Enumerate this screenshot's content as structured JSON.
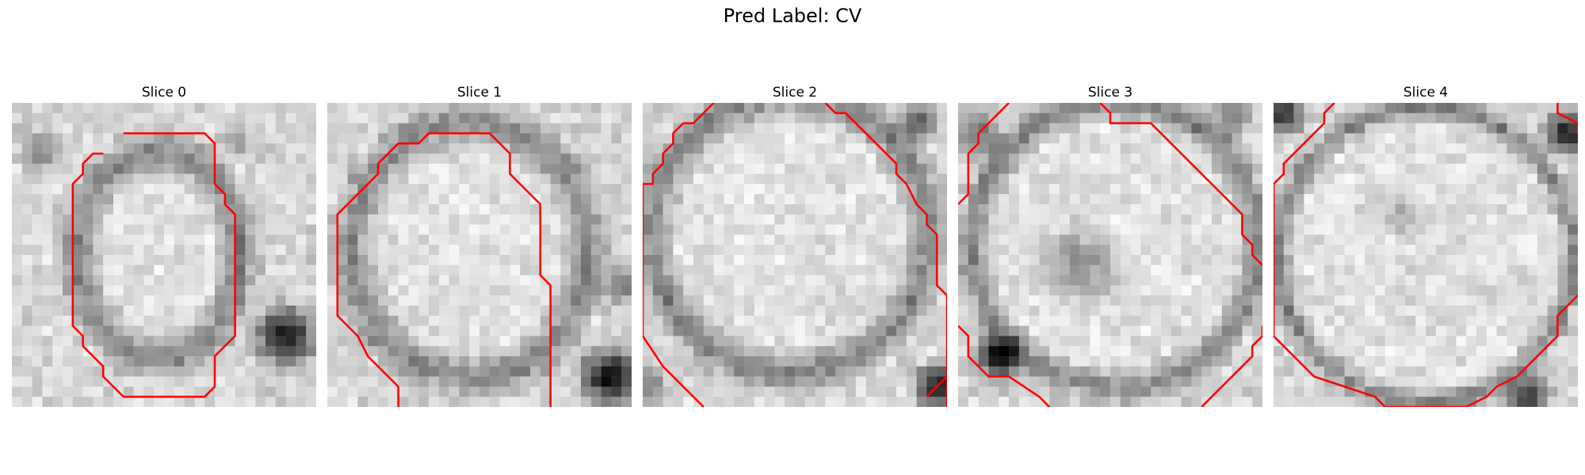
{
  "suptitle": "Pred Label: CV",
  "contour_color": "#ff0000",
  "colormap": "grayscale",
  "grid_size": 30,
  "slices": [
    {
      "title": "Slice 0",
      "seed": 11,
      "blob": {
        "cx": 14.5,
        "cy": 15.0,
        "rx": 8.0,
        "ry": 10.0,
        "ring": 2.2
      },
      "contours": [
        [
          [
            11,
            3
          ],
          [
            19,
            3
          ],
          [
            20,
            4
          ],
          [
            20,
            8
          ],
          [
            21,
            9
          ],
          [
            21,
            10
          ],
          [
            22,
            11
          ],
          [
            22,
            23
          ],
          [
            20,
            25
          ],
          [
            20,
            28
          ],
          [
            19,
            29
          ],
          [
            11,
            29
          ],
          [
            9,
            27
          ],
          [
            9,
            26
          ],
          [
            7,
            24
          ],
          [
            7,
            23
          ],
          [
            6,
            22
          ],
          [
            6,
            20
          ],
          [
            6,
            8
          ],
          [
            7,
            7
          ],
          [
            7,
            6
          ],
          [
            8,
            5
          ],
          [
            9,
            5
          ]
        ],
        [
          [
            11,
            3
          ],
          [
            11,
            3
          ]
        ]
      ],
      "darks": [
        [
          27,
          23,
          4,
          0.85
        ],
        [
          3,
          5,
          3,
          0.3
        ],
        [
          22,
          4,
          2,
          0.3
        ]
      ]
    },
    {
      "title": "Slice 1",
      "seed": 23,
      "blob": {
        "cx": 14.0,
        "cy": 14.5,
        "rx": 11.5,
        "ry": 12.5,
        "ring": 2.4
      },
      "contours": [
        [
          [
            7,
            30
          ],
          [
            7,
            28
          ],
          [
            5,
            26
          ],
          [
            4,
            25
          ],
          [
            3,
            23
          ],
          [
            2,
            22
          ],
          [
            1,
            21
          ],
          [
            1,
            11
          ],
          [
            3,
            9
          ],
          [
            5,
            7
          ],
          [
            5,
            6
          ],
          [
            6,
            5
          ],
          [
            7,
            4
          ],
          [
            9,
            4
          ],
          [
            10,
            3
          ],
          [
            16,
            3
          ],
          [
            18,
            5
          ],
          [
            18,
            7
          ],
          [
            21,
            10
          ],
          [
            21,
            17
          ],
          [
            22,
            18
          ],
          [
            22,
            30
          ]
        ]
      ],
      "darks": [
        [
          28,
          27,
          4,
          0.9
        ],
        [
          29,
          18,
          3,
          0.4
        ]
      ]
    },
    {
      "title": "Slice 2",
      "seed": 37,
      "blob": {
        "cx": 14.5,
        "cy": 13.0,
        "rx": 13.5,
        "ry": 13.5,
        "ring": 2.4
      },
      "contours": [
        [
          [
            7,
            0
          ],
          [
            5,
            2
          ],
          [
            4,
            2
          ],
          [
            3,
            3
          ],
          [
            3,
            4
          ],
          [
            2,
            5
          ],
          [
            2,
            6
          ],
          [
            1,
            7
          ],
          [
            1,
            8
          ],
          [
            0,
            8
          ],
          [
            0,
            23
          ],
          [
            2,
            26
          ],
          [
            4,
            28
          ],
          [
            6,
            30
          ]
        ],
        [
          [
            18,
            0
          ],
          [
            19,
            1
          ],
          [
            20,
            1
          ],
          [
            23,
            4
          ],
          [
            25,
            6
          ],
          [
            25,
            7
          ],
          [
            26,
            8
          ],
          [
            27,
            10
          ],
          [
            28,
            11
          ],
          [
            28,
            12
          ],
          [
            29,
            13
          ],
          [
            29,
            18
          ],
          [
            30,
            19
          ],
          [
            30,
            30
          ]
        ],
        [
          [
            30,
            27
          ],
          [
            28,
            29
          ]
        ]
      ],
      "darks": [
        [
          29,
          28,
          3,
          0.8
        ],
        [
          27,
          2,
          3,
          0.5
        ],
        [
          0,
          28,
          3,
          0.4
        ]
      ]
    },
    {
      "title": "Slice 3",
      "seed": 53,
      "blob": {
        "cx": 15.5,
        "cy": 14.0,
        "rx": 14.0,
        "ry": 14.0,
        "ring": 2.0
      },
      "contours": [
        [
          [
            0,
            10
          ],
          [
            1,
            9
          ],
          [
            1,
            5
          ],
          [
            2,
            4
          ],
          [
            2,
            3
          ],
          [
            3,
            2
          ],
          [
            4,
            1
          ],
          [
            5,
            0
          ]
        ],
        [
          [
            14,
            0
          ],
          [
            15,
            1
          ],
          [
            15,
            2
          ],
          [
            19,
            2
          ],
          [
            20,
            3
          ],
          [
            21,
            4
          ],
          [
            22,
            5
          ],
          [
            23,
            6
          ],
          [
            24,
            7
          ],
          [
            25,
            8
          ],
          [
            26,
            9
          ],
          [
            27,
            10
          ],
          [
            28,
            11
          ],
          [
            28,
            13
          ],
          [
            29,
            14
          ],
          [
            29,
            15
          ],
          [
            30,
            16
          ]
        ],
        [
          [
            0,
            22
          ],
          [
            1,
            23
          ],
          [
            1,
            25
          ],
          [
            2,
            26
          ],
          [
            3,
            27
          ],
          [
            5,
            27
          ],
          [
            8,
            29
          ],
          [
            9,
            30
          ]
        ],
        [
          [
            24,
            30
          ],
          [
            26,
            28
          ],
          [
            27,
            27
          ],
          [
            28,
            26
          ],
          [
            29,
            25
          ],
          [
            29,
            24
          ],
          [
            30,
            23
          ],
          [
            30,
            22
          ]
        ]
      ],
      "darks": [
        [
          4,
          25,
          3,
          0.95
        ],
        [
          12,
          16,
          5,
          0.35
        ],
        [
          2,
          3,
          3,
          0.45
        ],
        [
          27,
          1,
          3,
          0.4
        ]
      ]
    },
    {
      "title": "Slice 4",
      "seed": 71,
      "blob": {
        "cx": 15.0,
        "cy": 15.0,
        "rx": 14.5,
        "ry": 14.5,
        "ring": 1.5
      },
      "contours": [
        [
          [
            6,
            0
          ],
          [
            5,
            1
          ],
          [
            5,
            2
          ],
          [
            4,
            3
          ],
          [
            3,
            4
          ],
          [
            2,
            5
          ],
          [
            1,
            6
          ],
          [
            1,
            7
          ],
          [
            0,
            8
          ],
          [
            0,
            23
          ],
          [
            2,
            25
          ],
          [
            4,
            27
          ],
          [
            7,
            28
          ],
          [
            10,
            29
          ],
          [
            11,
            30
          ],
          [
            19,
            30
          ],
          [
            21,
            29
          ],
          [
            22,
            28
          ],
          [
            24,
            27
          ],
          [
            25,
            26
          ],
          [
            26,
            25
          ],
          [
            27,
            24
          ],
          [
            28,
            23
          ],
          [
            28,
            21
          ],
          [
            30,
            19
          ]
        ],
        [
          [
            28,
            0
          ],
          [
            28,
            1
          ],
          [
            30,
            2
          ],
          [
            30,
            3
          ]
        ]
      ],
      "darks": [
        [
          1,
          1,
          3,
          0.7
        ],
        [
          29,
          3,
          3,
          0.8
        ],
        [
          25,
          29,
          3,
          0.7
        ],
        [
          13,
          11,
          3,
          0.2
        ]
      ]
    }
  ]
}
